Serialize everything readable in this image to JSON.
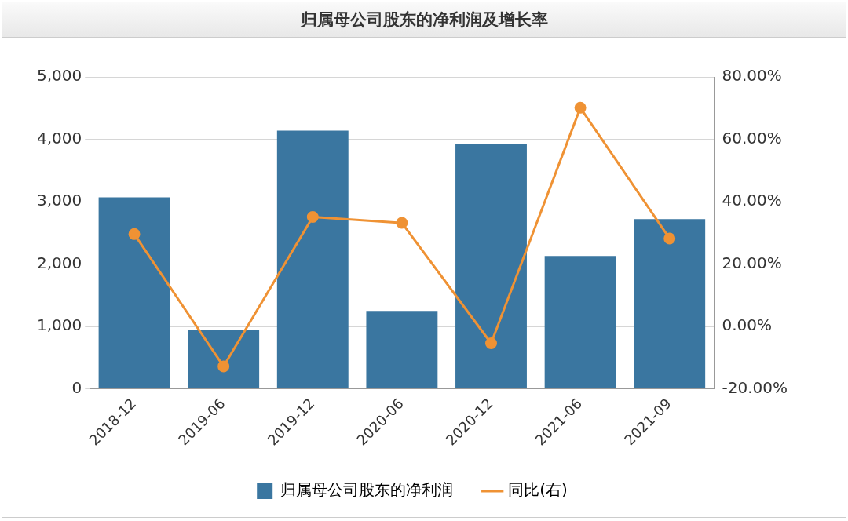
{
  "chart_data": {
    "type": "bar",
    "title": "归属母公司股东的净利润及增长率",
    "categories": [
      "2018-12",
      "2019-06",
      "2019-12",
      "2020-06",
      "2020-12",
      "2021-06",
      "2021-09"
    ],
    "series": [
      {
        "name": "归属母公司股东的净利润",
        "color": "#3a76a0",
        "values": [
          3070,
          950,
          4140,
          1250,
          3930,
          2130,
          2720
        ]
      },
      {
        "name": "同比(右)",
        "type": "line",
        "axis": "y2",
        "color": "#ef9234",
        "marker": "circle",
        "values": [
          29.6,
          -12.8,
          35.1,
          33.2,
          -5.4,
          70.1,
          28.2
        ]
      }
    ],
    "ylim": [
      0,
      5000
    ],
    "yticks": [
      0,
      {
        "value": 1000,
        "label": "1,000"
      },
      {
        "value": 2000,
        "label": "2,000"
      },
      {
        "value": 3000,
        "label": "3,000"
      },
      {
        "value": 4000,
        "label": "4,000"
      },
      {
        "value": 5000,
        "label": "5,000"
      }
    ],
    "y2lim": [
      -20,
      80
    ],
    "y2ticks": [
      {
        "value": -20,
        "label": "-20.00%"
      },
      {
        "value": 0,
        "label": "0.00%"
      },
      {
        "value": 20,
        "label": "20.00%"
      },
      {
        "value": 40,
        "label": "40.00%"
      },
      {
        "value": 60,
        "label": "60.00%"
      },
      {
        "value": 80,
        "label": "80.00%"
      }
    ],
    "grid": "y",
    "legend": "bottom"
  }
}
